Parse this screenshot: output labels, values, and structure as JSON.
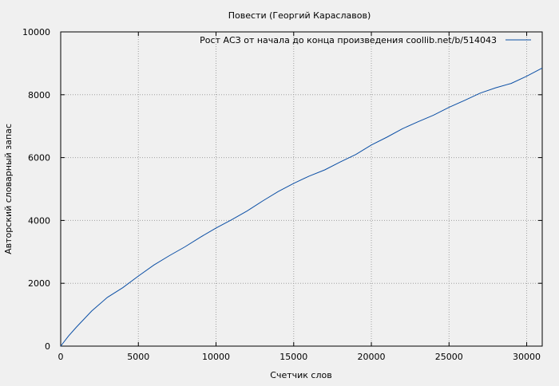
{
  "colors": {
    "background": "#f0f0f0",
    "grid": "#a0a0a0",
    "line": "#0b4fa5",
    "axis": "#000000"
  },
  "chart_data": {
    "type": "line",
    "title": "Повести (Георгий Караславов)",
    "xlabel": "Счетчик слов",
    "ylabel": "Авторский словарный запас",
    "xlim": [
      0,
      31000
    ],
    "ylim": [
      0,
      10000
    ],
    "xticks": [
      0,
      5000,
      10000,
      15000,
      20000,
      25000,
      30000
    ],
    "yticks": [
      0,
      2000,
      4000,
      6000,
      8000,
      10000
    ],
    "grid": true,
    "legend_position": "top-right",
    "series": [
      {
        "name": "Рост АСЗ от начала до конца произведения coollib.net/b/514043",
        "x": [
          0,
          500,
          1000,
          2000,
          3000,
          4000,
          5000,
          6000,
          7000,
          8000,
          9000,
          10000,
          11000,
          12000,
          13000,
          14000,
          15000,
          16000,
          17000,
          18000,
          19000,
          20000,
          21000,
          22000,
          23000,
          24000,
          25000,
          26000,
          27000,
          28000,
          29000,
          30000,
          31000
        ],
        "y": [
          0,
          320,
          600,
          1120,
          1550,
          1860,
          2230,
          2580,
          2880,
          3160,
          3470,
          3760,
          4020,
          4300,
          4620,
          4920,
          5180,
          5410,
          5610,
          5860,
          6100,
          6400,
          6650,
          6920,
          7140,
          7350,
          7600,
          7820,
          8050,
          8220,
          8360,
          8590,
          8850
        ]
      }
    ]
  }
}
